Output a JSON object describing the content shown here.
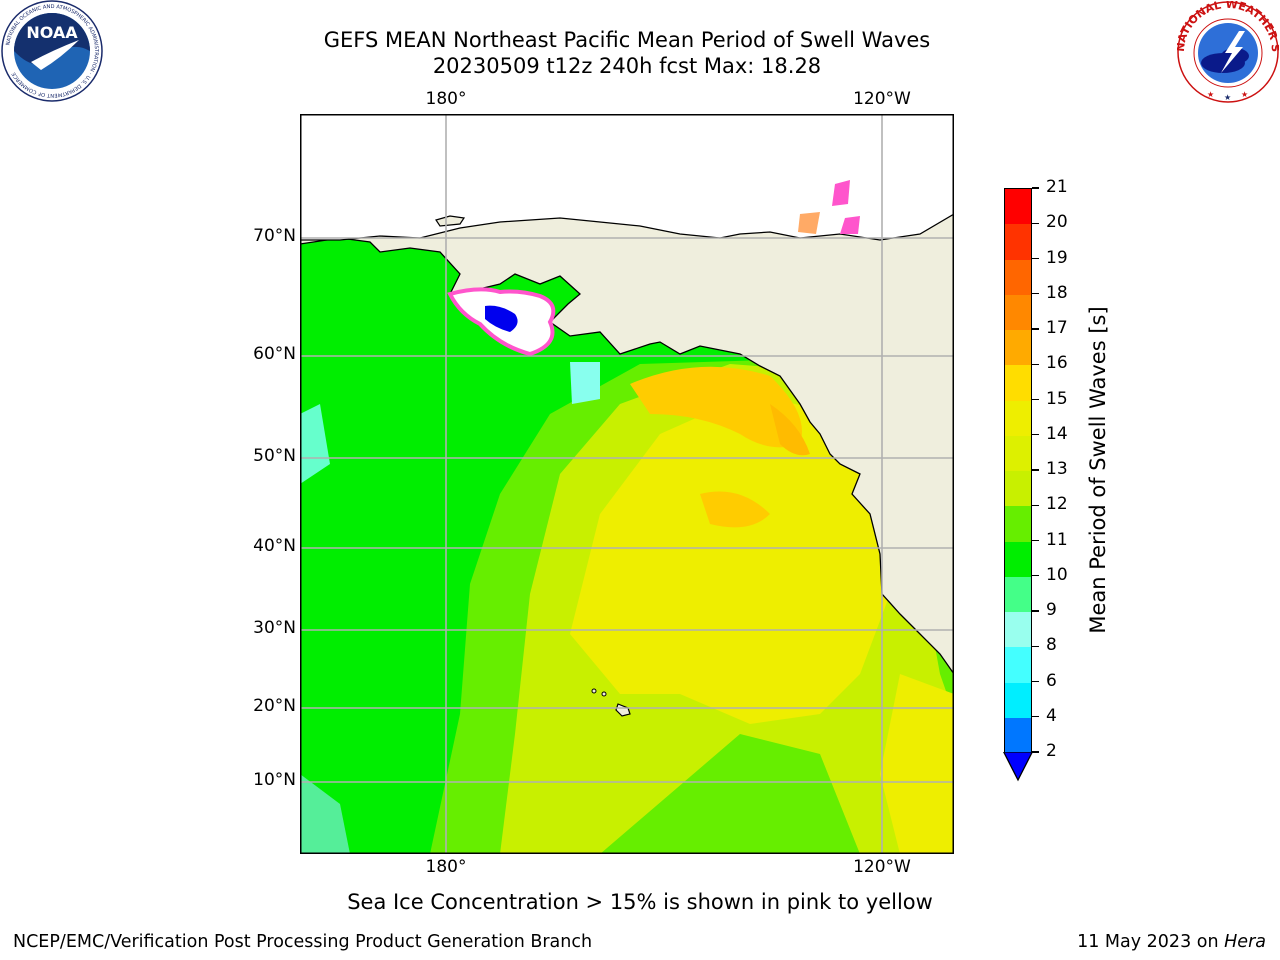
{
  "title": {
    "line1": "GEFS MEAN Northeast Pacific Mean Period of Swell Waves",
    "line2": "20230509 t12z 240h fcst   Max: 18.28"
  },
  "map": {
    "lon_labels_top": [
      "180°",
      "120°W"
    ],
    "lon_labels_bottom": [
      "180°",
      "120°W"
    ],
    "lat_labels": [
      "70°N",
      "60°N",
      "50°N",
      "40°N",
      "30°N",
      "20°N",
      "10°N"
    ],
    "colors": {
      "land": "#efeedd",
      "ocean_green": "#00ee00",
      "ocean_lightgreen": "#66ee00",
      "ocean_yellowgreen": "#c8f000",
      "ocean_yellow": "#eeee00",
      "ocean_orange": "#ffcc00",
      "ice_pink": "#ff55cc",
      "gridline": "#b0b0b0"
    }
  },
  "colorbar": {
    "title": "Mean Period of Swell Waves [s]",
    "ticks": [
      "21",
      "20",
      "19",
      "18",
      "17",
      "16",
      "15",
      "14",
      "13",
      "12",
      "11",
      "10",
      "9",
      "8",
      "6",
      "4",
      "2"
    ],
    "levels": [
      {
        "color": "#ff0000"
      },
      {
        "color": "#ff3300"
      },
      {
        "color": "#ff6600"
      },
      {
        "color": "#ff8800"
      },
      {
        "color": "#ffaa00"
      },
      {
        "color": "#ffdd00"
      },
      {
        "color": "#eeee00"
      },
      {
        "color": "#ddf000"
      },
      {
        "color": "#c8f000"
      },
      {
        "color": "#66ee00"
      },
      {
        "color": "#00ee00"
      },
      {
        "color": "#44ff88"
      },
      {
        "color": "#99ffee"
      },
      {
        "color": "#44ffff"
      },
      {
        "color": "#00eeff"
      },
      {
        "color": "#0077ff"
      }
    ],
    "extend_color": "#0000ff"
  },
  "logos": {
    "noaa": {
      "name": "NOAA",
      "ring_text": "NATIONAL OCEANIC AND ATMOSPHERIC ADMINISTRATION · U.S. DEPARTMENT OF COMMERCE"
    },
    "nws": {
      "ring_text": "NATIONAL WEATHER SERVICE"
    }
  },
  "note": "Sea Ice Concentration > 15% is shown in pink to yellow",
  "footer": {
    "left": "NCEP/EMC/Verification Post Processing Product Generation Branch",
    "right_prefix": "11 May 2023 on ",
    "right_host": "Hera"
  }
}
